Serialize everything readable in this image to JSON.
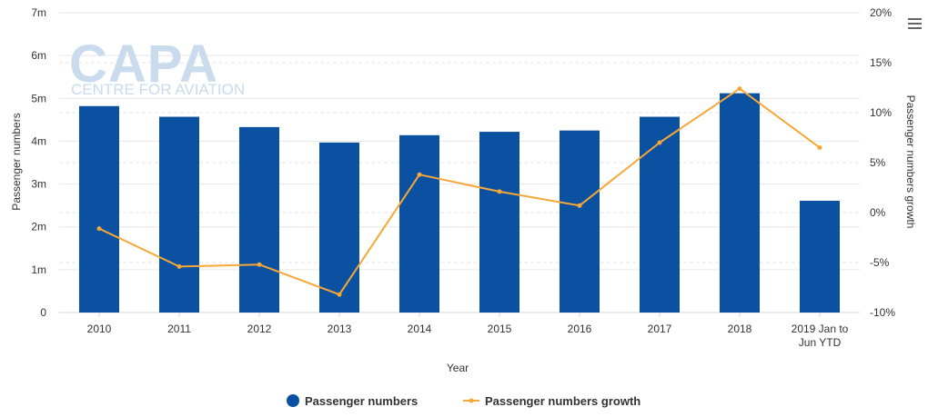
{
  "colors": {
    "bar": "#0a52a1",
    "line": "#f7a738",
    "grid": "#e6e6e6",
    "axis_text": "#333333"
  },
  "watermark": {
    "brand": "CAPA",
    "tagline": "CENTRE FOR AVIATION"
  },
  "menu_icon": "hamburger-menu-icon",
  "chart_data": {
    "type": "bar+line",
    "title": "",
    "xlabel": "Year",
    "ylabel_left": "Passenger numbers",
    "ylabel_right": "Passenger numbers growth",
    "categories": [
      [
        "2010"
      ],
      [
        "2011"
      ],
      [
        "2012"
      ],
      [
        "2013"
      ],
      [
        "2014"
      ],
      [
        "2015"
      ],
      [
        "2016"
      ],
      [
        "2017"
      ],
      [
        "2018"
      ],
      [
        "2019 Jan to",
        "Jun YTD"
      ]
    ],
    "series": [
      {
        "name": "Passenger numbers",
        "type": "bar",
        "axis": "left",
        "values": [
          4.82,
          4.57,
          4.33,
          3.97,
          4.14,
          4.22,
          4.25,
          4.57,
          5.12,
          2.61
        ]
      },
      {
        "name": "Passenger numbers growth",
        "type": "line",
        "axis": "right",
        "values": [
          -1.6,
          -5.4,
          -5.2,
          -8.2,
          3.8,
          2.1,
          0.7,
          7.0,
          12.4,
          6.5
        ]
      }
    ],
    "y_left": {
      "min": 0,
      "max": 7,
      "ticks": [
        0,
        1,
        2,
        3,
        4,
        5,
        6,
        7
      ],
      "tick_labels": [
        "0",
        "1m",
        "2m",
        "3m",
        "4m",
        "5m",
        "6m",
        "7m"
      ]
    },
    "y_right": {
      "min": -10,
      "max": 20,
      "ticks": [
        -10,
        -5,
        0,
        5,
        10,
        15,
        20
      ],
      "tick_labels": [
        "-10%",
        "-5%",
        "0%",
        "5%",
        "10%",
        "15%",
        "20%"
      ]
    },
    "legend": {
      "position": "bottom-center",
      "items": [
        "Passenger numbers",
        "Passenger numbers growth"
      ]
    },
    "grid": true
  }
}
